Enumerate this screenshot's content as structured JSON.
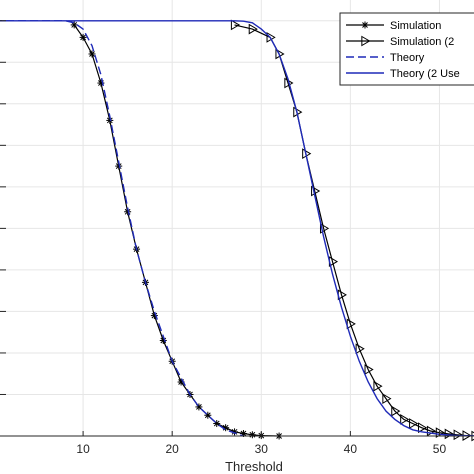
{
  "chart_data": {
    "type": "line",
    "xlabel": "Threshold",
    "ylabel": "",
    "title": "",
    "xlim": [
      0,
      55
    ],
    "ylim": [
      0,
      1.05
    ],
    "x_ticks": [
      10,
      20,
      30,
      40,
      50
    ],
    "grid": true,
    "legend_position": "top-right",
    "series": [
      {
        "name": "Simulation",
        "color": "#000000",
        "marker": "asterisk",
        "dash": "solid",
        "x": [
          9,
          10,
          11,
          12,
          13,
          14,
          15,
          16,
          17,
          18,
          19,
          20,
          21,
          22,
          23,
          24,
          25,
          26,
          27,
          28,
          29,
          30,
          32
        ],
        "y": [
          0.99,
          0.96,
          0.92,
          0.85,
          0.76,
          0.65,
          0.54,
          0.45,
          0.37,
          0.29,
          0.23,
          0.18,
          0.13,
          0.1,
          0.07,
          0.05,
          0.03,
          0.02,
          0.01,
          0.006,
          0.003,
          0.001,
          0.0
        ]
      },
      {
        "name": "Simulation (2",
        "color": "#000000",
        "marker": "triangle-right",
        "dash": "solid",
        "x": [
          27,
          29,
          31,
          32,
          33,
          34,
          35,
          36,
          37,
          38,
          39,
          40,
          41,
          42,
          43,
          44,
          45,
          46,
          47,
          48,
          49,
          50,
          51,
          52,
          53,
          54
        ],
        "y": [
          0.99,
          0.98,
          0.96,
          0.92,
          0.85,
          0.78,
          0.68,
          0.59,
          0.5,
          0.42,
          0.34,
          0.27,
          0.21,
          0.16,
          0.12,
          0.09,
          0.06,
          0.04,
          0.03,
          0.02,
          0.012,
          0.008,
          0.005,
          0.003,
          0.001,
          0.0
        ]
      },
      {
        "name": "Theory",
        "color": "#1f2ab8",
        "marker": "none",
        "dash": "dashed",
        "x": [
          0,
          8,
          9,
          10,
          11,
          12,
          13,
          14,
          15,
          16,
          17,
          18,
          19,
          20,
          21,
          22,
          23,
          24,
          25,
          26,
          28
        ],
        "y": [
          1.0,
          1.0,
          0.995,
          0.98,
          0.94,
          0.87,
          0.77,
          0.66,
          0.55,
          0.45,
          0.37,
          0.3,
          0.24,
          0.18,
          0.14,
          0.1,
          0.07,
          0.05,
          0.03,
          0.015,
          0.0
        ]
      },
      {
        "name": "Theory (2 Use",
        "color": "#1f2ab8",
        "marker": "none",
        "dash": "solid",
        "x": [
          0,
          27,
          28,
          29,
          30,
          31,
          32,
          33,
          34,
          35,
          36,
          37,
          38,
          39,
          40,
          41,
          42,
          43,
          44,
          45,
          46,
          47,
          48,
          50,
          52,
          55
        ],
        "y": [
          1.0,
          1.0,
          0.999,
          0.995,
          0.98,
          0.96,
          0.92,
          0.86,
          0.78,
          0.68,
          0.58,
          0.48,
          0.39,
          0.31,
          0.24,
          0.18,
          0.13,
          0.09,
          0.06,
          0.04,
          0.025,
          0.015,
          0.01,
          0.004,
          0.001,
          0.0
        ]
      }
    ]
  }
}
